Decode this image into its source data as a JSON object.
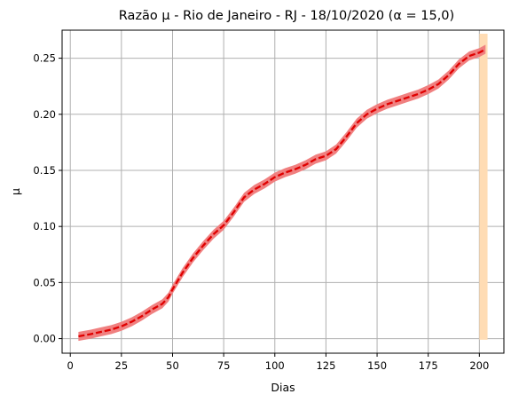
{
  "chart_data": {
    "type": "line",
    "title": "Razão μ - Rio de Janeiro - RJ - 18/10/2020 (α = 15,0)",
    "xlabel": "Dias",
    "ylabel": "μ",
    "xlim": [
      -4,
      212
    ],
    "ylim": [
      -0.013,
      0.275
    ],
    "xticks": [
      0,
      25,
      50,
      75,
      100,
      125,
      150,
      175,
      200
    ],
    "xtick_labels": [
      "0",
      "25",
      "50",
      "75",
      "100",
      "125",
      "150",
      "175",
      "200"
    ],
    "yticks": [
      0.0,
      0.05,
      0.1,
      0.15,
      0.2,
      0.25
    ],
    "ytick_labels": [
      "0.00",
      "0.05",
      "0.10",
      "0.15",
      "0.20",
      "0.25"
    ],
    "grid": true,
    "highlight_band": {
      "x_start": 200,
      "x_end": 204,
      "color": "#ffdcb4"
    },
    "series": [
      {
        "style": "dashed",
        "color": "#e00000",
        "band_color": "#f08080",
        "band_width": 0.004,
        "x": [
          4,
          10,
          15,
          20,
          25,
          30,
          35,
          40,
          45,
          48,
          50,
          55,
          60,
          65,
          70,
          75,
          80,
          85,
          90,
          95,
          100,
          105,
          110,
          115,
          120,
          125,
          130,
          135,
          140,
          145,
          150,
          155,
          160,
          165,
          170,
          175,
          180,
          185,
          190,
          195,
          200,
          203
        ],
        "y": [
          0.002,
          0.004,
          0.006,
          0.008,
          0.011,
          0.015,
          0.02,
          0.026,
          0.031,
          0.037,
          0.044,
          0.059,
          0.072,
          0.083,
          0.093,
          0.101,
          0.113,
          0.126,
          0.133,
          0.138,
          0.144,
          0.148,
          0.151,
          0.155,
          0.16,
          0.163,
          0.169,
          0.18,
          0.192,
          0.2,
          0.205,
          0.209,
          0.212,
          0.215,
          0.218,
          0.222,
          0.227,
          0.235,
          0.245,
          0.252,
          0.255,
          0.258
        ]
      }
    ]
  }
}
